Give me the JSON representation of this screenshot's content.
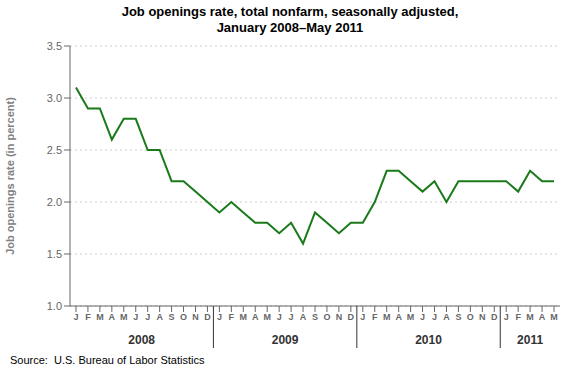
{
  "chart_data": {
    "type": "line",
    "title": "Job openings rate, total nonfarm, seasonally adjusted,\nJanuary 2008–May 2011",
    "ylabel": "Job openings rate (in percent)",
    "source": "Source:  U.S. Bureau of Labor Statistics",
    "color": "#1a7a1a",
    "categories": [
      "J",
      "F",
      "M",
      "A",
      "M",
      "J",
      "J",
      "A",
      "S",
      "O",
      "N",
      "D",
      "J",
      "F",
      "M",
      "A",
      "M",
      "J",
      "J",
      "A",
      "S",
      "O",
      "N",
      "D",
      "J",
      "F",
      "M",
      "A",
      "M",
      "J",
      "J",
      "A",
      "S",
      "O",
      "N",
      "D",
      "J",
      "F",
      "M",
      "A",
      "M"
    ],
    "values": [
      3.1,
      2.9,
      2.9,
      2.6,
      2.8,
      2.8,
      2.5,
      2.5,
      2.2,
      2.2,
      2.1,
      2.0,
      1.9,
      2.0,
      1.9,
      1.8,
      1.8,
      1.7,
      1.8,
      1.6,
      1.9,
      1.8,
      1.7,
      1.8,
      1.8,
      2.0,
      2.3,
      2.3,
      2.2,
      2.1,
      2.2,
      2.0,
      2.2,
      2.2,
      2.2,
      2.2,
      2.2,
      2.1,
      2.3,
      2.2,
      2.2
    ],
    "ylim": [
      1.0,
      3.5
    ],
    "yticks": [
      {
        "value": 1.0,
        "label": "1.0"
      },
      1.5,
      {
        "value": 2.0,
        "label": "2.0"
      },
      2.5,
      {
        "value": 3.0,
        "label": "3.0"
      },
      3.5
    ],
    "grid": true,
    "annotations": [
      {
        "text": "2008",
        "x": 5.5
      },
      {
        "text": "2009",
        "x": 17.5
      },
      {
        "text": "2010",
        "x": 29.5
      },
      {
        "text": "2011",
        "x": 38.0
      }
    ],
    "dividers": [
      11.5,
      23.5,
      35.5
    ]
  }
}
